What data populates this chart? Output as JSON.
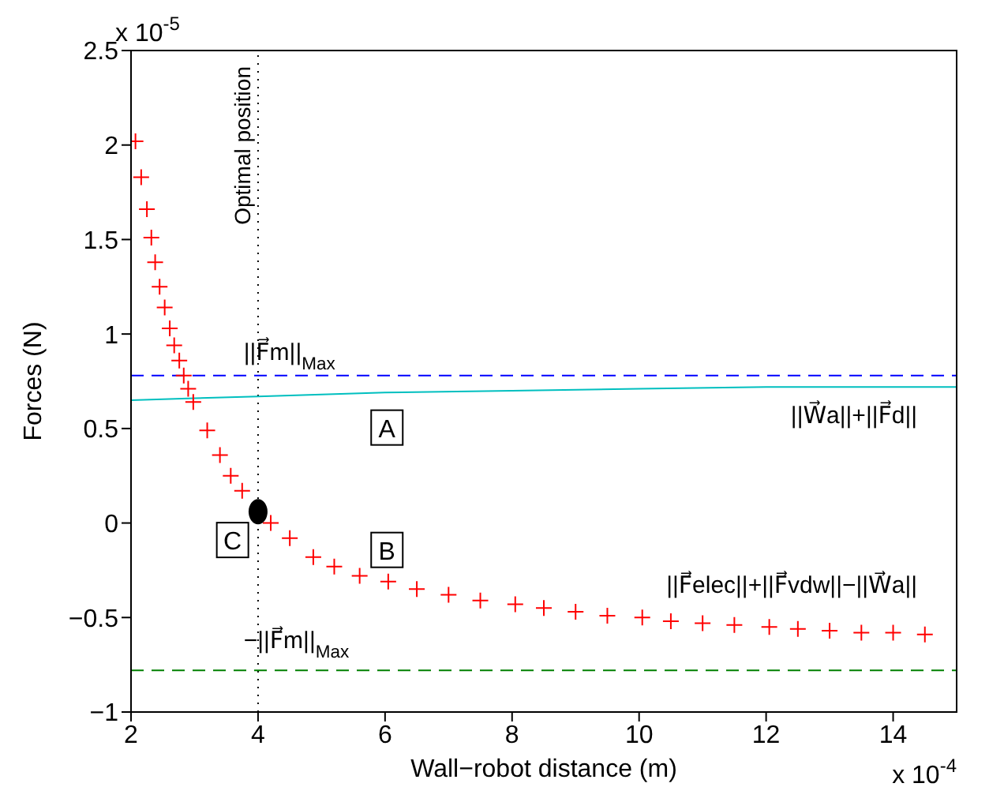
{
  "chart_data": {
    "type": "scatter",
    "xlabel": "Wall−robot distance (m)",
    "ylabel": "Forces (N)",
    "xlim": [
      2,
      15
    ],
    "xticks": [
      2,
      4,
      6,
      8,
      10,
      12,
      14
    ],
    "ylim": [
      -1,
      2.5
    ],
    "yticks": [
      -1,
      -0.5,
      0,
      0.5,
      1,
      1.5,
      2,
      2.5
    ],
    "series": [
      {
        "type": "line",
        "name": "||W⃗a||+||F⃗d||",
        "color": "#00bfbf",
        "line_style": "solid",
        "x": [
          2,
          3,
          4,
          6,
          8,
          10,
          12,
          15
        ],
        "values": [
          0.65,
          0.66,
          0.67,
          0.69,
          0.7,
          0.71,
          0.72,
          0.72
        ]
      },
      {
        "name": "||F⃗elec||+||F⃗vdw||−||W⃗a||",
        "color": "#ff0000",
        "marker": "cross",
        "x": [
          2.07,
          2.16,
          2.25,
          2.32,
          2.38,
          2.45,
          2.53,
          2.61,
          2.68,
          2.76,
          2.83,
          2.9,
          2.98,
          3.2,
          3.4,
          3.57,
          3.75,
          4.2,
          4.5,
          4.87,
          5.2,
          5.6,
          6.05,
          6.5,
          7.0,
          7.5,
          8.05,
          8.5,
          9.0,
          9.5,
          10.05,
          10.5,
          11,
          11.5,
          12.05,
          12.5,
          13,
          13.5,
          14,
          14.5
        ],
        "values": [
          2.02,
          1.83,
          1.66,
          1.51,
          1.38,
          1.25,
          1.14,
          1.03,
          0.94,
          0.86,
          0.78,
          0.71,
          0.64,
          0.49,
          0.36,
          0.25,
          0.17,
          0.0,
          -0.08,
          -0.18,
          -0.23,
          -0.28,
          -0.31,
          -0.35,
          -0.38,
          -0.41,
          -0.43,
          -0.45,
          -0.47,
          -0.49,
          -0.5,
          -0.52,
          -0.53,
          -0.54,
          -0.55,
          -0.56,
          -0.57,
          -0.58,
          -0.58,
          -0.59
        ]
      },
      {
        "type": "scatter",
        "color": "#000000",
        "marker": "circle",
        "x": [
          4
        ],
        "values": [
          0.06
        ]
      }
    ],
    "ref_lines": [
      {
        "axis": "x",
        "value": 4,
        "label": "Optimal position",
        "color": "#000000",
        "line_style": "dotted"
      },
      {
        "axis": "y",
        "value": 0.78,
        "label": "||F⃗m||$_{Max}$",
        "color": "#0000ff",
        "line_style": "dashed"
      },
      {
        "axis": "y",
        "value": -0.78,
        "label": "−||F⃗m||$_{Max}$",
        "color": "#008000",
        "line_style": "dashed"
      }
    ],
    "annotations": [
      "A",
      "B",
      "C",
      "x 10$^{-5}$",
      "x 10$^{-4}$"
    ]
  }
}
